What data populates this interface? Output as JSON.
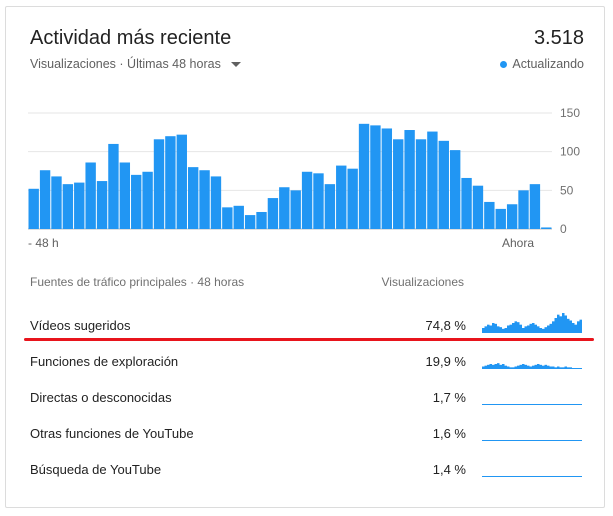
{
  "header": {
    "title": "Actividad más reciente",
    "total": "3.518",
    "subtitle": "Visualizaciones · Últimas 48 horas",
    "status": "Actualizando",
    "accent_color": "#2196f3"
  },
  "chart_data": {
    "type": "bar",
    "x_start_label": "- 48 h",
    "x_end_label": "Ahora",
    "ylim": [
      0,
      150
    ],
    "y_ticks": [
      "0",
      "50",
      "100",
      "150"
    ],
    "grid": true,
    "color": "#2196f3",
    "values": [
      52,
      76,
      68,
      58,
      60,
      86,
      62,
      110,
      86,
      70,
      74,
      116,
      120,
      122,
      80,
      76,
      68,
      28,
      30,
      18,
      22,
      40,
      54,
      50,
      74,
      72,
      58,
      82,
      78,
      136,
      134,
      130,
      116,
      128,
      116,
      126,
      114,
      102,
      66,
      56,
      35,
      26,
      32,
      50,
      58,
      2
    ]
  },
  "traffic": {
    "heading": "Fuentes de tráfico principales · 48 horas",
    "column_header": "Visualizaciones",
    "rows": [
      {
        "label": "Vídeos sugeridos",
        "pct": "74,8 %",
        "spark": [
          6,
          8,
          10,
          9,
          12,
          11,
          8,
          7,
          5,
          6,
          9,
          10,
          12,
          14,
          13,
          10,
          6,
          8,
          9,
          11,
          12,
          10,
          8,
          6,
          5,
          7,
          9,
          11,
          14,
          18,
          22,
          20,
          24,
          21,
          17,
          15,
          12,
          10,
          14,
          16
        ]
      },
      {
        "label": "Funciones de exploración",
        "pct": "19,9 %",
        "spark": [
          3,
          4,
          5,
          6,
          5,
          6,
          7,
          5,
          6,
          4,
          3,
          2,
          2,
          3,
          4,
          5,
          6,
          5,
          4,
          3,
          4,
          5,
          6,
          5,
          4,
          5,
          4,
          3,
          3,
          2,
          3,
          2,
          2,
          3,
          2,
          2,
          1,
          1,
          1,
          1
        ]
      },
      {
        "label": "Directas o desconocidas",
        "pct": "1,7 %",
        "spark": [
          0,
          1,
          0,
          0,
          1,
          0,
          0,
          0,
          1,
          0,
          1,
          1,
          0,
          0,
          1,
          0,
          0,
          1,
          0,
          1,
          0,
          0,
          1,
          1,
          0,
          0,
          1,
          0,
          0,
          1,
          0,
          0,
          1,
          0,
          1,
          0,
          0,
          1,
          0,
          0
        ]
      },
      {
        "label": "Otras funciones de YouTube",
        "pct": "1,6 %",
        "spark": [
          0,
          0,
          1,
          0,
          0,
          1,
          0,
          1,
          0,
          0,
          0,
          1,
          0,
          0,
          0,
          1,
          1,
          0,
          0,
          0,
          1,
          0,
          1,
          1,
          0,
          1,
          0,
          0,
          1,
          1,
          0,
          1,
          0,
          1,
          0,
          1,
          1,
          0,
          1,
          0
        ]
      },
      {
        "label": "Búsqueda de YouTube",
        "pct": "1,4 %",
        "spark": [
          0,
          0,
          0,
          1,
          0,
          0,
          1,
          0,
          0,
          0,
          0,
          0,
          1,
          0,
          0,
          0,
          0,
          0,
          1,
          0,
          0,
          0,
          0,
          1,
          0,
          0,
          0,
          0,
          0,
          1,
          0,
          0,
          0,
          0,
          0,
          0,
          0,
          1,
          0,
          0
        ]
      }
    ]
  }
}
